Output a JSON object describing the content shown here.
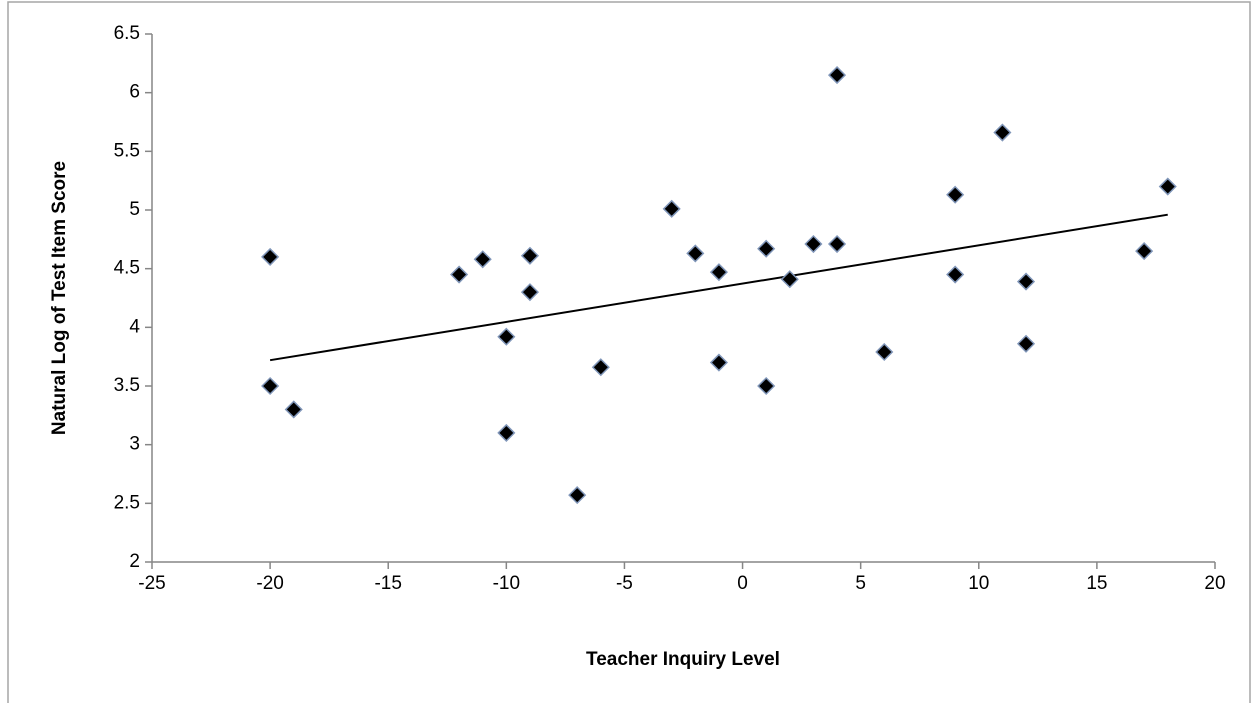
{
  "chart_data": {
    "type": "scatter",
    "x_label": "Teacher Inquiry Level",
    "y_label": "Natural Log of Test Item Score",
    "x": [
      -20,
      -20,
      -19,
      -12,
      -11,
      -10,
      -10,
      -9,
      -9,
      -7,
      -6,
      -3,
      -2,
      -1,
      -1,
      1,
      1,
      2,
      3,
      4,
      4,
      6,
      9,
      9,
      11,
      12,
      12,
      17,
      18
    ],
    "values": [
      4.6,
      3.5,
      3.3,
      4.45,
      4.58,
      3.92,
      3.1,
      4.61,
      4.3,
      2.57,
      3.66,
      5.01,
      4.63,
      4.47,
      3.7,
      4.67,
      3.5,
      4.41,
      4.71,
      4.71,
      6.15,
      3.79,
      5.13,
      4.45,
      5.66,
      4.39,
      3.86,
      4.65,
      5.2
    ],
    "color": "#000000",
    "trendline": {
      "x": [
        -20,
        18
      ],
      "values": [
        3.72,
        4.96
      ],
      "color": "#000000"
    },
    "xlim": [
      -25,
      20
    ],
    "xticks": [
      -25,
      -20,
      -15,
      -10,
      -5,
      0,
      5,
      10,
      15,
      20
    ],
    "ylim": [
      2,
      6.5
    ],
    "yticks": [
      2,
      2.5,
      3,
      3.5,
      4,
      4.5,
      5,
      5.5,
      6,
      6.5
    ],
    "grid": false
  }
}
